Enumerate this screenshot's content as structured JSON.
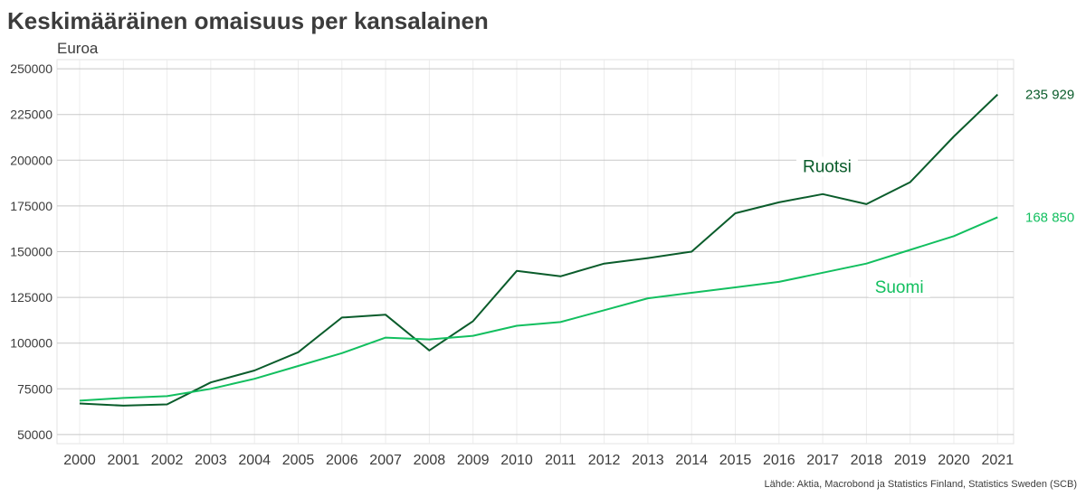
{
  "chart_data": {
    "type": "line",
    "title": "Keskimääräinen omaisuus per kansalainen",
    "ylabel": "Euroa",
    "xlabel": "",
    "source": "Lähde: Aktia, Macrobond ja Statistics Finland, Statistics Sweden (SCB)",
    "categories": [
      "2000",
      "2001",
      "2002",
      "2003",
      "2004",
      "2005",
      "2006",
      "2007",
      "2008",
      "2009",
      "2010",
      "2011",
      "2012",
      "2013",
      "2014",
      "2015",
      "2016",
      "2017",
      "2018",
      "2019",
      "2020",
      "2021"
    ],
    "ylim": [
      45000,
      255000
    ],
    "yticks": [
      50000,
      75000,
      100000,
      125000,
      150000,
      175000,
      200000,
      225000,
      250000
    ],
    "ytick_labels": [
      "50000",
      "75000",
      "100000",
      "125000",
      "150000",
      "175000",
      "200000",
      "225000",
      "250000"
    ],
    "grid": true,
    "series": [
      {
        "name": "Ruotsi",
        "color": "#0a5c2b",
        "end_label": "235 929",
        "values": [
          67000,
          65800,
          66500,
          78500,
          85000,
          95000,
          114000,
          115500,
          96000,
          112000,
          139500,
          136500,
          143500,
          146500,
          150000,
          171000,
          177000,
          181500,
          176000,
          188000,
          213000,
          235929
        ]
      },
      {
        "name": "Suomi",
        "color": "#12bf5f",
        "end_label": "168 850",
        "values": [
          68500,
          70000,
          71000,
          75000,
          80500,
          87500,
          94500,
          103000,
          102000,
          104000,
          109500,
          111500,
          118000,
          124500,
          127500,
          130500,
          133500,
          138500,
          143500,
          151000,
          158500,
          168850
        ]
      }
    ]
  }
}
